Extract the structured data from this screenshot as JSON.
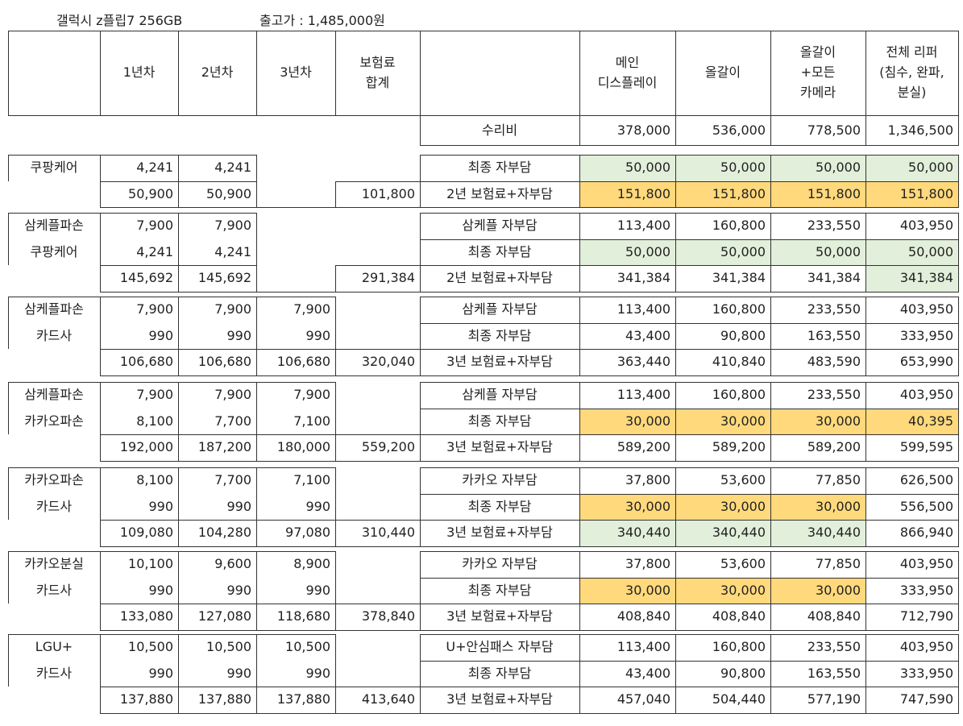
{
  "title": {
    "model": "갤럭시 z플립7 256GB",
    "price": "출고가 : 1,485,000원"
  },
  "colors": {
    "green": "#e2efda",
    "yellow": "#ffd97c"
  },
  "header": {
    "y1": "1년차",
    "y2": "2년차",
    "y3": "3년차",
    "total": [
      "보험료",
      "합계"
    ],
    "main": [
      "메인",
      "디스플레이"
    ],
    "full": "올갈이",
    "fullcam": [
      "올갈이",
      "+모든",
      "카메라"
    ],
    "refurb": [
      "전체 리퍼",
      "(침수, 완파,",
      "분실)"
    ]
  },
  "repair": {
    "label": "수리비",
    "values": [
      "378,000",
      "536,000",
      "778,500",
      "1,346,500"
    ]
  },
  "blocks": [
    {
      "rows": [
        {
          "name": "쿠팡케어",
          "y": [
            "4,241",
            "4,241",
            ""
          ],
          "total": "",
          "label": "최종 자부담",
          "vals": [
            "50,000",
            "50,000",
            "50,000",
            "50,000"
          ],
          "hl": [
            "g",
            "g",
            "g",
            "g"
          ]
        },
        {
          "name": "",
          "y": [
            "50,900",
            "50,900",
            ""
          ],
          "total": "101,800",
          "label": "2년 보험료+자부담",
          "vals": [
            "151,800",
            "151,800",
            "151,800",
            "151,800"
          ],
          "hl": [
            "y",
            "y",
            "y",
            "y"
          ]
        }
      ]
    },
    {
      "rows": [
        {
          "name": "삼케플파손",
          "y": [
            "7,900",
            "7,900",
            ""
          ],
          "total": "",
          "label": "삼케플 자부담",
          "vals": [
            "113,400",
            "160,800",
            "233,550",
            "403,950"
          ],
          "hl": [
            "",
            "",
            "",
            ""
          ]
        },
        {
          "name": "쿠팡케어",
          "y": [
            "4,241",
            "4,241",
            ""
          ],
          "total": "",
          "label": "최종 자부담",
          "vals": [
            "50,000",
            "50,000",
            "50,000",
            "50,000"
          ],
          "hl": [
            "g",
            "g",
            "g",
            "g"
          ]
        },
        {
          "name": "",
          "y": [
            "145,692",
            "145,692",
            ""
          ],
          "total": "291,384",
          "label": "2년 보험료+자부담",
          "vals": [
            "341,384",
            "341,384",
            "341,384",
            "341,384"
          ],
          "hl": [
            "",
            "",
            "",
            "g"
          ]
        }
      ]
    },
    {
      "rows": [
        {
          "name": "삼케플파손",
          "y": [
            "7,900",
            "7,900",
            "7,900"
          ],
          "total": "",
          "label": "삼케플 자부담",
          "vals": [
            "113,400",
            "160,800",
            "233,550",
            "403,950"
          ],
          "hl": [
            "",
            "",
            "",
            ""
          ]
        },
        {
          "name": "카드사",
          "y": [
            "990",
            "990",
            "990"
          ],
          "total": "",
          "label": "최종 자부담",
          "vals": [
            "43,400",
            "90,800",
            "163,550",
            "333,950"
          ],
          "hl": [
            "",
            "",
            "",
            ""
          ]
        },
        {
          "name": "",
          "y": [
            "106,680",
            "106,680",
            "106,680"
          ],
          "total": "320,040",
          "label": "3년 보험료+자부담",
          "vals": [
            "363,440",
            "410,840",
            "483,590",
            "653,990"
          ],
          "hl": [
            "",
            "",
            "",
            ""
          ]
        }
      ]
    },
    {
      "rows": [
        {
          "name": "삼케플파손",
          "y": [
            "7,900",
            "7,900",
            "7,900"
          ],
          "total": "",
          "label": "삼케플 자부담",
          "vals": [
            "113,400",
            "160,800",
            "233,550",
            "403,950"
          ],
          "hl": [
            "",
            "",
            "",
            ""
          ]
        },
        {
          "name": "카카오파손",
          "y": [
            "8,100",
            "7,700",
            "7,100"
          ],
          "total": "",
          "label": "최종 자부담",
          "vals": [
            "30,000",
            "30,000",
            "30,000",
            "40,395"
          ],
          "hl": [
            "y",
            "y",
            "y",
            "y"
          ]
        },
        {
          "name": "",
          "y": [
            "192,000",
            "187,200",
            "180,000"
          ],
          "total": "559,200",
          "label": "3년 보험료+자부담",
          "vals": [
            "589,200",
            "589,200",
            "589,200",
            "599,595"
          ],
          "hl": [
            "",
            "",
            "",
            ""
          ]
        }
      ]
    },
    {
      "rows": [
        {
          "name": "카카오파손",
          "y": [
            "8,100",
            "7,700",
            "7,100"
          ],
          "total": "",
          "label": "카카오 자부담",
          "vals": [
            "37,800",
            "53,600",
            "77,850",
            "626,500"
          ],
          "hl": [
            "",
            "",
            "",
            ""
          ]
        },
        {
          "name": "카드사",
          "y": [
            "990",
            "990",
            "990"
          ],
          "total": "",
          "label": "최종 자부담",
          "vals": [
            "30,000",
            "30,000",
            "30,000",
            "556,500"
          ],
          "hl": [
            "y",
            "y",
            "y",
            ""
          ]
        },
        {
          "name": "",
          "y": [
            "109,080",
            "104,280",
            "97,080"
          ],
          "total": "310,440",
          "label": "3년 보험료+자부담",
          "vals": [
            "340,440",
            "340,440",
            "340,440",
            "866,940"
          ],
          "hl": [
            "g",
            "g",
            "g",
            ""
          ]
        }
      ]
    },
    {
      "rows": [
        {
          "name": "카카오분실",
          "y": [
            "10,100",
            "9,600",
            "8,900"
          ],
          "total": "",
          "label": "카카오 자부담",
          "vals": [
            "37,800",
            "53,600",
            "77,850",
            "403,950"
          ],
          "hl": [
            "",
            "",
            "",
            ""
          ]
        },
        {
          "name": "카드사",
          "y": [
            "990",
            "990",
            "990"
          ],
          "total": "",
          "label": "최종 자부담",
          "vals": [
            "30,000",
            "30,000",
            "30,000",
            "333,950"
          ],
          "hl": [
            "y",
            "y",
            "y",
            ""
          ]
        },
        {
          "name": "",
          "y": [
            "133,080",
            "127,080",
            "118,680"
          ],
          "total": "378,840",
          "label": "3년 보험료+자부담",
          "vals": [
            "408,840",
            "408,840",
            "408,840",
            "712,790"
          ],
          "hl": [
            "",
            "",
            "",
            ""
          ]
        }
      ]
    },
    {
      "rows": [
        {
          "name": "LGU+",
          "y": [
            "10,500",
            "10,500",
            "10,500"
          ],
          "total": "",
          "label": "U+안심패스 자부담",
          "vals": [
            "113,400",
            "160,800",
            "233,550",
            "403,950"
          ],
          "hl": [
            "",
            "",
            "",
            ""
          ]
        },
        {
          "name": "카드사",
          "y": [
            "990",
            "990",
            "990"
          ],
          "total": "",
          "label": "최종 자부담",
          "vals": [
            "43,400",
            "90,800",
            "163,550",
            "333,950"
          ],
          "hl": [
            "",
            "",
            "",
            ""
          ]
        },
        {
          "name": "",
          "y": [
            "137,880",
            "137,880",
            "137,880"
          ],
          "total": "413,640",
          "label": "3년 보험료+자부담",
          "vals": [
            "457,040",
            "504,440",
            "577,190",
            "747,590"
          ],
          "hl": [
            "",
            "",
            "",
            ""
          ]
        }
      ]
    }
  ]
}
